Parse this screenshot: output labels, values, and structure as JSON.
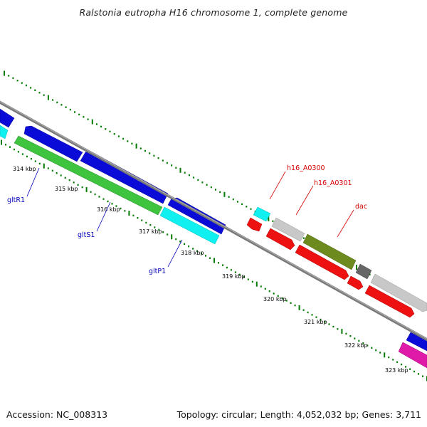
{
  "title": "Ralstonia eutropha H16 chromosome 1, complete genome",
  "accession": "Accession: NC_008313",
  "summary": "Topology: circular; Length: 4,052,032 bp; Genes: 3,711",
  "colors": {
    "backbone": "#7a7a7a",
    "tick_major": "#007a00",
    "tick_minor": "#007a00",
    "label_blue": "#0000b8",
    "label_red": "#d40000",
    "gene_blue": "#0b0bd8",
    "gene_cyan": "#11f0f0",
    "gene_green": "#3fc43f",
    "gene_red": "#ee1111",
    "gene_silver": "#c8c8c8",
    "gene_olive": "#6c8a1e",
    "gene_darkgray": "#666666",
    "gene_magenta": "#e01aa8"
  },
  "scale_labels": [
    "314 kbp",
    "315 kbp",
    "316 kbp",
    "317 kbp",
    "318 kbp",
    "319 kbp",
    "320 kbp",
    "321 kbp",
    "322 kbp",
    "323 kbp"
  ],
  "gene_labels": [
    {
      "text": "gltR1",
      "color": "blue"
    },
    {
      "text": "gltS1",
      "color": "blue"
    },
    {
      "text": "gltP1",
      "color": "blue"
    },
    {
      "text": "h16_A0300",
      "color": "red"
    },
    {
      "text": "h16_A0301",
      "color": "red"
    },
    {
      "text": "dac",
      "color": "red"
    }
  ]
}
